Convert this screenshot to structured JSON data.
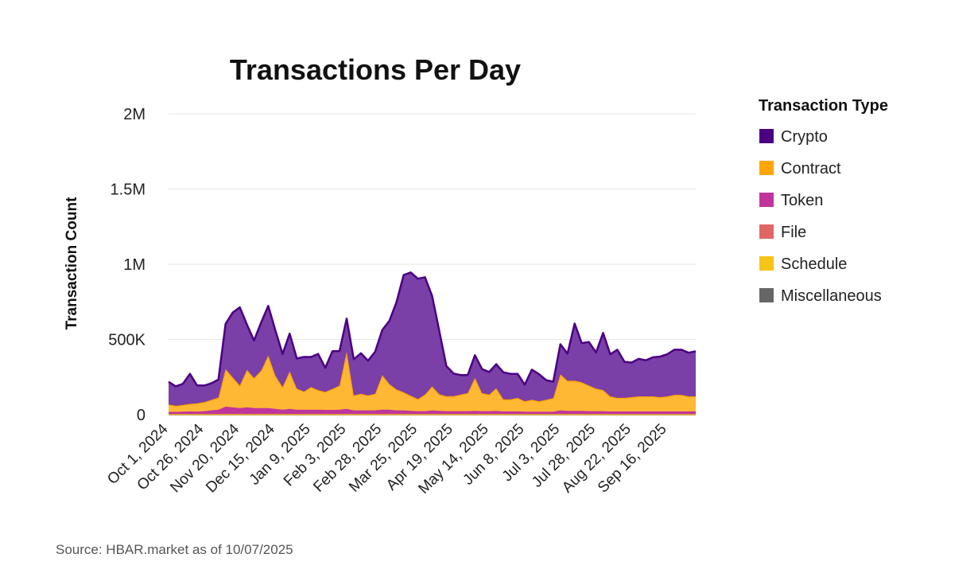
{
  "source": "Source: HBAR.market as of 10/07/2025",
  "chart_data": {
    "type": "area",
    "stacked": true,
    "title": "Transactions Per Day",
    "xlabel": "",
    "ylabel": "Transaction Count",
    "ylim": [
      0,
      2000000
    ],
    "yticks": [
      0,
      500000,
      1000000,
      1500000,
      2000000
    ],
    "ytick_labels": [
      "0",
      "500K",
      "1M",
      "1.5M",
      "2M"
    ],
    "grid": true,
    "legend_title": "Transaction Type",
    "legend_position": "right",
    "x_labels": [
      "Oct 1, 2024",
      "Oct 26, 2024",
      "Nov 20, 2024",
      "Dec 15, 2024",
      "Jan 9, 2025",
      "Feb 3, 2025",
      "Feb 28, 2025",
      "Mar 25, 2025",
      "Apr 19, 2025",
      "May 14, 2025",
      "Jun 8, 2025",
      "Jul 3, 2025",
      "Jul 28, 2025",
      "Aug 22, 2025",
      "Sep 16, 2025"
    ],
    "x": [
      "Oct 1, 2024",
      "Oct 6, 2024",
      "Oct 11, 2024",
      "Oct 16, 2024",
      "Oct 21, 2024",
      "Oct 26, 2024",
      "Oct 31, 2024",
      "Nov 5, 2024",
      "Nov 10, 2024",
      "Nov 15, 2024",
      "Nov 20, 2024",
      "Nov 25, 2024",
      "Nov 30, 2024",
      "Dec 5, 2024",
      "Dec 10, 2024",
      "Dec 15, 2024",
      "Dec 20, 2024",
      "Dec 25, 2024",
      "Dec 30, 2024",
      "Jan 4, 2025",
      "Jan 9, 2025",
      "Jan 14, 2025",
      "Jan 19, 2025",
      "Jan 24, 2025",
      "Jan 29, 2025",
      "Feb 3, 2025",
      "Feb 8, 2025",
      "Feb 13, 2025",
      "Feb 18, 2025",
      "Feb 23, 2025",
      "Feb 28, 2025",
      "Mar 5, 2025",
      "Mar 10, 2025",
      "Mar 15, 2025",
      "Mar 20, 2025",
      "Mar 25, 2025",
      "Mar 30, 2025",
      "Apr 4, 2025",
      "Apr 9, 2025",
      "Apr 14, 2025",
      "Apr 19, 2025",
      "Apr 24, 2025",
      "Apr 29, 2025",
      "May 4, 2025",
      "May 9, 2025",
      "May 14, 2025",
      "May 19, 2025",
      "May 24, 2025",
      "May 29, 2025",
      "Jun 3, 2025",
      "Jun 8, 2025",
      "Jun 13, 2025",
      "Jun 18, 2025",
      "Jun 23, 2025",
      "Jun 28, 2025",
      "Jul 3, 2025",
      "Jul 8, 2025",
      "Jul 13, 2025",
      "Jul 18, 2025",
      "Jul 23, 2025",
      "Jul 28, 2025",
      "Aug 2, 2025",
      "Aug 7, 2025",
      "Aug 12, 2025",
      "Aug 17, 2025",
      "Aug 22, 2025",
      "Aug 27, 2025",
      "Sep 1, 2025",
      "Sep 6, 2025",
      "Sep 11, 2025",
      "Sep 16, 2025",
      "Sep 21, 2025",
      "Sep 26, 2025",
      "Oct 1, 2025",
      "Oct 6, 2025"
    ],
    "series": [
      {
        "name": "Crypto",
        "color": "#4B0082",
        "fill": "#7B3FA8",
        "values": [
          150000,
          130000,
          140000,
          200000,
          120000,
          110000,
          110000,
          120000,
          300000,
          430000,
          520000,
          300000,
          250000,
          320000,
          330000,
          300000,
          220000,
          250000,
          200000,
          230000,
          200000,
          240000,
          160000,
          250000,
          230000,
          220000,
          240000,
          270000,
          230000,
          280000,
          300000,
          420000,
          580000,
          780000,
          820000,
          800000,
          780000,
          600000,
          420000,
          200000,
          150000,
          130000,
          120000,
          150000,
          160000,
          150000,
          160000,
          180000,
          170000,
          160000,
          110000,
          200000,
          180000,
          130000,
          110000,
          200000,
          180000,
          380000,
          260000,
          290000,
          240000,
          380000,
          280000,
          320000,
          240000,
          230000,
          250000,
          240000,
          260000,
          270000,
          280000,
          300000,
          300000,
          290000,
          300000
        ]
      },
      {
        "name": "Contract",
        "color": "#FFA500",
        "fill": "#FFB833",
        "values": [
          50000,
          40000,
          45000,
          50000,
          55000,
          60000,
          70000,
          80000,
          250000,
          200000,
          150000,
          250000,
          200000,
          250000,
          350000,
          220000,
          150000,
          250000,
          140000,
          120000,
          150000,
          130000,
          120000,
          140000,
          160000,
          380000,
          100000,
          110000,
          100000,
          110000,
          230000,
          170000,
          140000,
          120000,
          100000,
          80000,
          110000,
          160000,
          110000,
          100000,
          100000,
          110000,
          120000,
          220000,
          120000,
          110000,
          150000,
          80000,
          80000,
          90000,
          70000,
          80000,
          70000,
          80000,
          90000,
          240000,
          200000,
          200000,
          190000,
          170000,
          150000,
          140000,
          100000,
          90000,
          90000,
          95000,
          100000,
          100000,
          100000,
          95000,
          100000,
          110000,
          110000,
          100000,
          100000
        ]
      },
      {
        "name": "Token",
        "color": "#C0359B",
        "fill": "#C0359B",
        "values": [
          15000,
          15000,
          16000,
          18000,
          17000,
          20000,
          25000,
          30000,
          50000,
          45000,
          40000,
          45000,
          40000,
          40000,
          40000,
          35000,
          30000,
          35000,
          30000,
          30000,
          30000,
          30000,
          28000,
          28000,
          30000,
          35000,
          25000,
          25000,
          25000,
          25000,
          30000,
          30000,
          25000,
          25000,
          22000,
          20000,
          20000,
          25000,
          22000,
          20000,
          20000,
          20000,
          20000,
          22000,
          20000,
          20000,
          22000,
          18000,
          18000,
          18000,
          16000,
          16000,
          16000,
          16000,
          16000,
          25000,
          22000,
          22000,
          22000,
          20000,
          20000,
          20000,
          18000,
          18000,
          18000,
          18000,
          18000,
          18000,
          18000,
          18000,
          18000,
          18000,
          18000,
          18000,
          18000
        ]
      },
      {
        "name": "File",
        "color": "#E06666",
        "fill": "#E06666",
        "values": [
          1000,
          1000,
          1000,
          1000,
          1000,
          1000,
          1000,
          1000,
          1000,
          1000,
          1000,
          1000,
          1000,
          1000,
          1000,
          1000,
          1000,
          1000,
          1000,
          1000,
          1000,
          1000,
          1000,
          1000,
          1000,
          1000,
          1000,
          1000,
          1000,
          1000,
          1000,
          1000,
          1000,
          1000,
          1000,
          1000,
          1000,
          1000,
          1000,
          1000,
          1000,
          1000,
          1000,
          1000,
          1000,
          1000,
          1000,
          1000,
          1000,
          1000,
          1000,
          1000,
          1000,
          1000,
          1000,
          1000,
          1000,
          1000,
          1000,
          1000,
          1000,
          1000,
          1000,
          1000,
          1000,
          1000,
          1000,
          1000,
          1000,
          1000,
          1000,
          1000,
          1000,
          1000,
          1000
        ]
      },
      {
        "name": "Schedule",
        "color": "#F5C518",
        "fill": "#F5C518",
        "values": [
          500,
          500,
          500,
          500,
          500,
          500,
          500,
          500,
          500,
          500,
          500,
          500,
          500,
          500,
          500,
          500,
          500,
          500,
          500,
          500,
          500,
          500,
          500,
          500,
          500,
          500,
          500,
          500,
          500,
          500,
          500,
          500,
          500,
          500,
          500,
          500,
          500,
          500,
          500,
          500,
          500,
          500,
          500,
          500,
          500,
          500,
          500,
          500,
          500,
          500,
          500,
          500,
          500,
          500,
          500,
          500,
          500,
          500,
          500,
          500,
          500,
          500,
          500,
          500,
          500,
          500,
          500,
          500,
          500,
          500,
          500,
          500,
          500,
          500,
          500
        ]
      },
      {
        "name": "Miscellaneous",
        "color": "#666666",
        "fill": "#666666",
        "values": [
          2000,
          2000,
          2000,
          2000,
          2000,
          2000,
          2000,
          2000,
          2000,
          2000,
          2000,
          2000,
          2000,
          2000,
          2000,
          2000,
          2000,
          2000,
          2000,
          2000,
          2000,
          2000,
          2000,
          2000,
          2000,
          2000,
          2000,
          2000,
          2000,
          2000,
          2000,
          2000,
          2000,
          2000,
          2000,
          2000,
          2000,
          2000,
          2000,
          2000,
          2000,
          2000,
          2000,
          2000,
          2000,
          2000,
          2000,
          2000,
          2000,
          2000,
          2000,
          2000,
          2000,
          2000,
          2000,
          2000,
          2000,
          2000,
          2000,
          2000,
          2000,
          2000,
          2000,
          2000,
          2000,
          2000,
          2000,
          2000,
          2000,
          2000,
          2000,
          2000,
          2000,
          2000,
          2000
        ]
      }
    ]
  }
}
